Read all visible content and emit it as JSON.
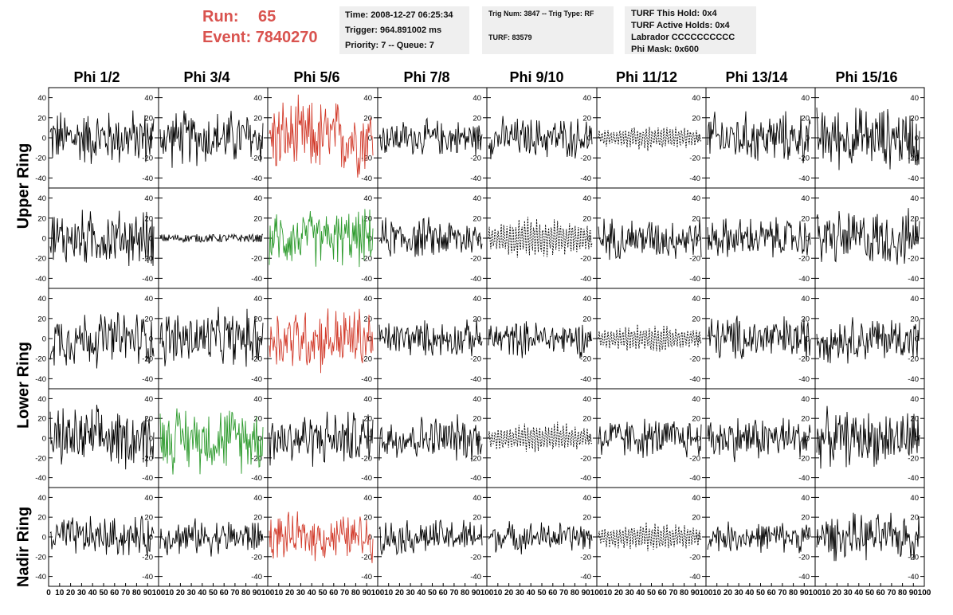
{
  "run_info": {
    "run_label": "Run:",
    "run_value": "65",
    "event_label": "Event:",
    "event_value": "7840270"
  },
  "info_box_1": {
    "time": "Time: 2008-12-27 06:25:34",
    "trigger": "Trigger: 964.891002 ms",
    "priority": "Priority: 7 -- Queue: 7"
  },
  "info_box_2": {
    "trig": "Trig Num: 3847 -- Trig Type: RF",
    "turf": "TURF: 83579"
  },
  "info_box_3": {
    "hold": "TURF This Hold: 0x4",
    "active": "TURF Active Holds: 0x4",
    "labrador": "Labrador CCCCCCCCCC",
    "phimask": "Phi Mask: 0x600"
  },
  "phi_headers": [
    "Phi 1/2",
    "Phi 3/4",
    "Phi 5/6",
    "Phi 7/8",
    "Phi 9/10",
    "Phi 11/12",
    "Phi 13/14",
    "Phi 15/16"
  ],
  "ring_labels": {
    "upper": "Upper Ring",
    "lower": "Lower Ring",
    "nadir": "Nadir Ring"
  },
  "colors": {
    "title_red": "#d9534f",
    "trace_red": "#d23b2b",
    "trace_green": "#2c9a2c",
    "trace_black": "#000000",
    "info_bg": "#efefef"
  },
  "chart_data": {
    "type": "line",
    "ylim": [
      -50,
      50
    ],
    "y_ticks": [
      "40",
      "20",
      "0",
      "-20",
      "-40"
    ],
    "xlim": [
      0,
      100
    ],
    "x_tick_labels": [
      "0",
      "10",
      "20",
      "30",
      "40",
      "50",
      "60",
      "70",
      "80",
      "90",
      "100"
    ],
    "rows": 5,
    "cols": 8,
    "panel_styles": [
      [
        "solid",
        "solid",
        "red",
        "solid",
        "solid",
        "dashed",
        "solid",
        "solid"
      ],
      [
        "solid",
        "flat",
        "green",
        "solid",
        "dashed",
        "solid",
        "solid",
        "solid"
      ],
      [
        "solid",
        "solid",
        "red",
        "solid",
        "solid",
        "dashed",
        "solid",
        "solid"
      ],
      [
        "solid",
        "green",
        "solid",
        "solid",
        "dashed",
        "solid",
        "solid",
        "solid"
      ],
      [
        "solid",
        "solid",
        "red",
        "solid",
        "solid",
        "dashed",
        "solid",
        "solid"
      ]
    ],
    "panel_amplitudes": [
      [
        22,
        22,
        30,
        14,
        16,
        12,
        20,
        24
      ],
      [
        22,
        4,
        22,
        16,
        20,
        16,
        16,
        22
      ],
      [
        22,
        22,
        26,
        14,
        14,
        14,
        18,
        18
      ],
      [
        24,
        26,
        22,
        18,
        16,
        16,
        18,
        22
      ],
      [
        16,
        14,
        18,
        14,
        12,
        14,
        12,
        18
      ]
    ]
  }
}
